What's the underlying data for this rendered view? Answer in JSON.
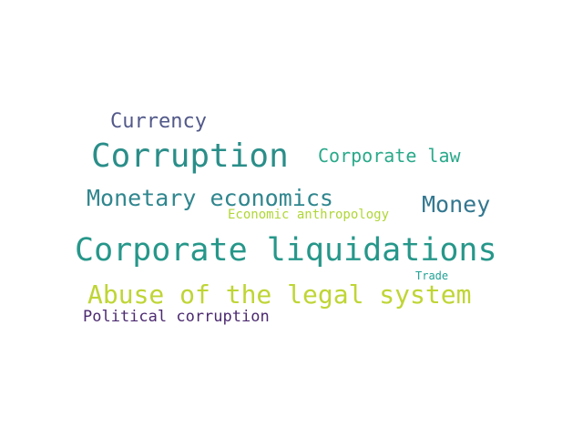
{
  "words": [
    {
      "text": "Currency",
      "color": "#525989"
    },
    {
      "text": "Corruption",
      "color": "#2a8e89"
    },
    {
      "text": "Corporate law",
      "color": "#2aa98a"
    },
    {
      "text": "Monetary economics",
      "color": "#30868e"
    },
    {
      "text": "Money",
      "color": "#33778f"
    },
    {
      "text": "Economic anthropology",
      "color": "#b0d637"
    },
    {
      "text": "Corporate liquidations",
      "color": "#26978a"
    },
    {
      "text": "Trade",
      "color": "#21a195"
    },
    {
      "text": "Abuse of the legal system",
      "color": "#bfd535"
    },
    {
      "text": "Political corruption",
      "color": "#4c2a70"
    }
  ]
}
